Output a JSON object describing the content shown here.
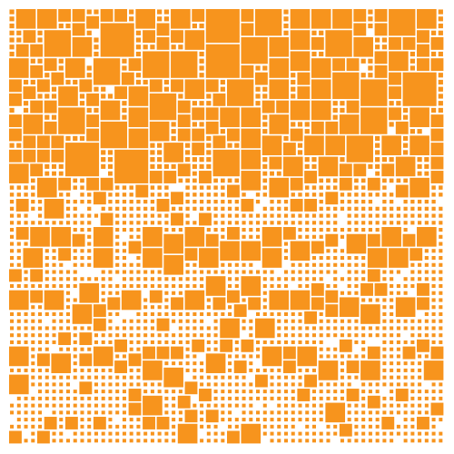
{
  "artwork": {
    "kind": "generative-square-mosaic",
    "background_color": "#ffffff",
    "square_color": "#f7941d",
    "grid_columns": 62,
    "grid_rows": 62,
    "square_sizes_in_cells": [
      1,
      2,
      3,
      4,
      5
    ],
    "density_rows": [
      1,
      1,
      1,
      1,
      1,
      1,
      1,
      1,
      1,
      1,
      1,
      1,
      1,
      1,
      1,
      1,
      1,
      1,
      1,
      1,
      0.95,
      0.85,
      0.8,
      0.7,
      0.6,
      0.5,
      0.45,
      0.42,
      0.4,
      0.38,
      0.37,
      0.36,
      0.36,
      0.35,
      0.35,
      0.35,
      0.34,
      0.34,
      0.34,
      0.34,
      0.33,
      0.33,
      0.33,
      0.32,
      0.32,
      0.32,
      0.31,
      0.31,
      0.31,
      0.3,
      0.3,
      0.3,
      0.3,
      0.3,
      0.3,
      0.3,
      0.3,
      0.3,
      0.3,
      0.3,
      0.3,
      0.3
    ],
    "emphasis_rows": [
      31,
      32,
      33,
      34,
      40,
      41,
      42,
      48,
      49,
      50
    ]
  }
}
